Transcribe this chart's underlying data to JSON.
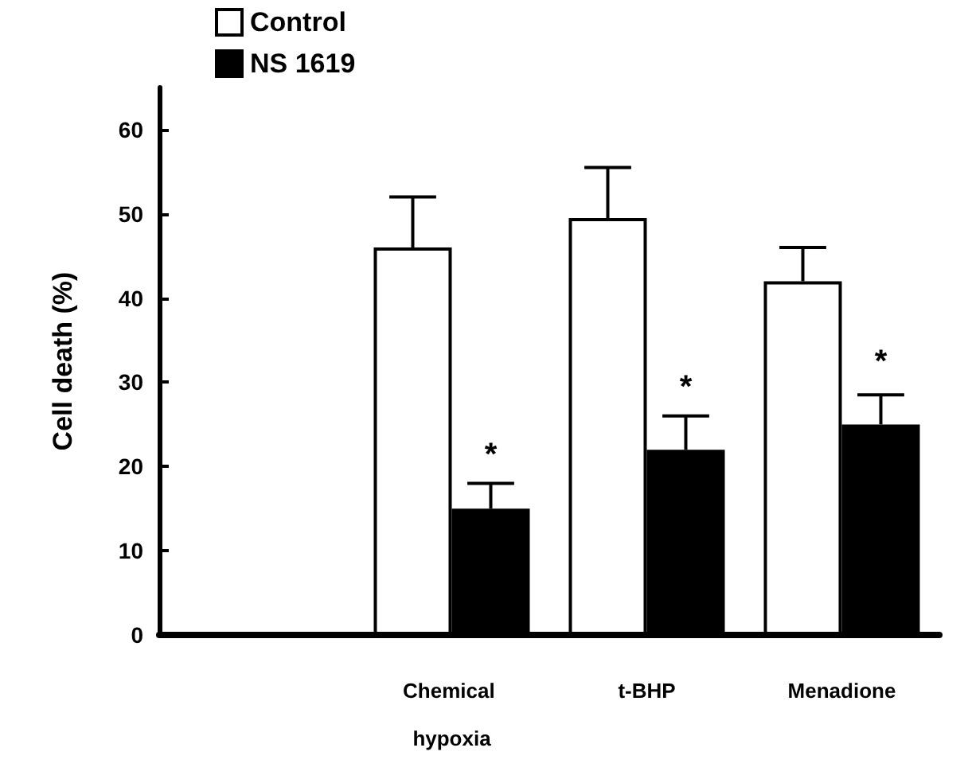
{
  "chart_data": {
    "type": "bar",
    "ylabel": "Cell death (%)",
    "categories": [
      null,
      "Chemical hypoxia",
      "t-BHP",
      "Menadione"
    ],
    "series": [
      {
        "name": "Control",
        "color": "#ffffff",
        "values": [
          null,
          46,
          49.5,
          42
        ],
        "errors": [
          null,
          6,
          6,
          4
        ]
      },
      {
        "name": "NS 1619",
        "color": "#000000",
        "values": [
          null,
          15,
          22,
          25
        ],
        "errors": [
          null,
          3,
          4,
          3.5
        ]
      }
    ],
    "annotations": [
      {
        "text": "*",
        "x": "Chemical hypoxia",
        "y": 19.5
      },
      {
        "text": "*",
        "x": "t-BHP",
        "y": 27.5
      },
      {
        "text": "*",
        "x": "Menadione",
        "y": 30.5
      }
    ],
    "ylim": [
      0,
      65
    ],
    "yticks": [
      0,
      10,
      20,
      30,
      40,
      50,
      60
    ],
    "grid": false,
    "legend": "top left"
  }
}
